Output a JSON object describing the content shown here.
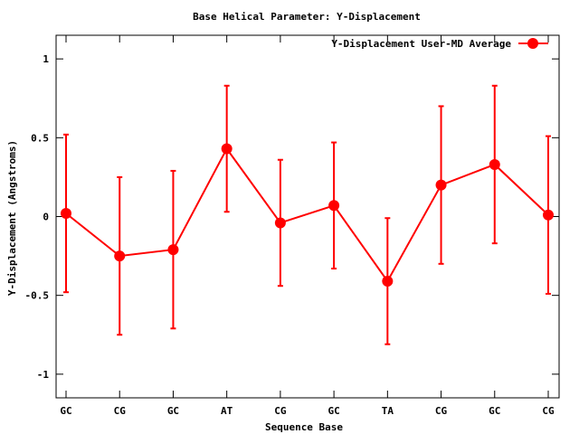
{
  "chart_data": {
    "type": "line",
    "title": "Base  Helical Parameter: Y-Displacement",
    "xlabel": "Sequence Base",
    "ylabel": "Y-Displacement (Angstroms)",
    "categories": [
      "GC",
      "CG",
      "GC",
      "AT",
      "CG",
      "GC",
      "TA",
      "CG",
      "GC",
      "CG"
    ],
    "ylim": [
      -1.15,
      1.15
    ],
    "yticks": [
      -1,
      -0.5,
      0,
      0.5,
      1
    ],
    "ytick_labels": [
      "-1",
      "-0.5",
      "0",
      "0.5",
      "1"
    ],
    "grid": false,
    "legend_position": "top-right",
    "series": [
      {
        "name": "Y-Displacement User-MD Average",
        "color": "#ff0000",
        "marker": "circle",
        "values": [
          0.02,
          -0.25,
          -0.21,
          0.43,
          -0.04,
          0.07,
          -0.41,
          0.2,
          0.33,
          0.01
        ],
        "error_low": [
          -0.48,
          -0.75,
          -0.71,
          0.03,
          -0.44,
          -0.33,
          -0.81,
          -0.3,
          -0.17,
          -0.49
        ],
        "error_high": [
          0.52,
          0.25,
          0.29,
          0.83,
          0.36,
          0.47,
          -0.01,
          0.7,
          0.83,
          0.51
        ]
      }
    ]
  }
}
